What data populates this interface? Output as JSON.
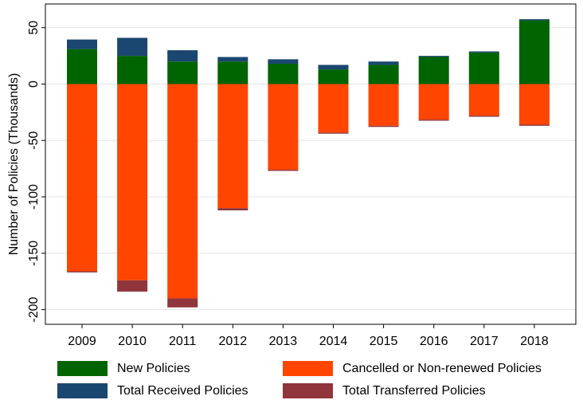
{
  "chart_data": {
    "type": "stacked_bar",
    "y_label": "Number of Policies (Thousands)",
    "categories": [
      "2009",
      "2010",
      "2011",
      "2012",
      "2013",
      "2014",
      "2015",
      "2016",
      "2017",
      "2018"
    ],
    "series": [
      {
        "name": "New Policies",
        "color": "#006400",
        "values": [
          31,
          25,
          20,
          20,
          18,
          13,
          17,
          24,
          28,
          56.5
        ]
      },
      {
        "name": "Cancelled or Non-renewed Policies",
        "color": "#ff4500",
        "values": [
          -166,
          -174,
          -190,
          -110,
          -76,
          -43,
          -37,
          -31.5,
          -28,
          -36
        ]
      },
      {
        "name": "Total Received Policies",
        "color": "#1a476f",
        "values": [
          8.5,
          16,
          10,
          4,
          4,
          4,
          3,
          1,
          1,
          1
        ]
      },
      {
        "name": "Total Transferred Policies",
        "color": "#90353b",
        "values": [
          -1,
          -10,
          -8,
          -2,
          -1,
          -1,
          -1,
          -1,
          -1,
          -1
        ]
      }
    ],
    "ylim": [
      -213,
      71
    ],
    "yticks": [
      -200,
      -150,
      -100,
      -50,
      0,
      50
    ],
    "grid": true
  }
}
